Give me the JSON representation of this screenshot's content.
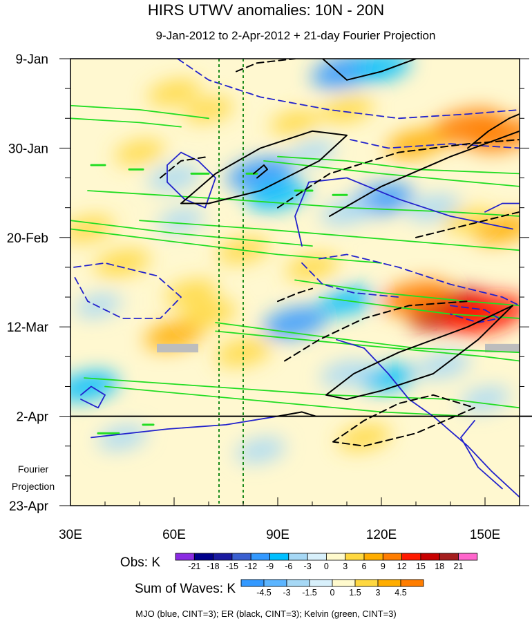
{
  "chart_data": {
    "type": "heatmap",
    "title": "HIRS UTWV anomalies: 10N - 20N",
    "subtitle": "9-Jan-2012 to 2-Apr-2012 + 21-day Fourier Projection",
    "x_axis": {
      "range": [
        30,
        160
      ],
      "ticks": [
        30,
        60,
        90,
        120,
        150
      ],
      "tick_labels": [
        "30E",
        "60E",
        "90E",
        "120E",
        "150E"
      ]
    },
    "y_axis": {
      "range_days": [
        0,
        105
      ],
      "ticks_days": [
        0,
        21,
        42,
        63,
        84,
        105
      ],
      "tick_labels": [
        "9-Jan",
        "30-Jan",
        "20-Feb",
        "12-Mar",
        "2-Apr",
        "23-Apr"
      ],
      "obs_end_day": 84
    },
    "fourier_label": [
      "Fourier",
      "Projection"
    ],
    "reference_longitudes": [
      73,
      80
    ],
    "obs_colorbar": {
      "label": "Obs: K",
      "levels": [
        "-21",
        "-18",
        "-15",
        "-12",
        "-9",
        "-6",
        "-3",
        "0",
        "3",
        "6",
        "9",
        "12",
        "15",
        "18",
        "21"
      ],
      "colors": [
        "#8a2be2",
        "#00008b",
        "#1a1aa0",
        "#3a5fd0",
        "#3399ff",
        "#00bfff",
        "#a6d8f5",
        "#d8f0fb",
        "#fffacd",
        "#ffd840",
        "#ffad00",
        "#ff7d00",
        "#ff1a00",
        "#c80000",
        "#a51e1e",
        "#ff66cc"
      ]
    },
    "waves_colorbar": {
      "label": "Sum of Waves: K",
      "levels": [
        "-4.5",
        "-3",
        "-1.5",
        "0",
        "1.5",
        "3",
        "4.5"
      ],
      "colors": [
        "#3399ff",
        "#5cb5ff",
        "#a6d8f5",
        "#d8f0fb",
        "#fffacd",
        "#ffd840",
        "#ffad00",
        "#ff7d00"
      ]
    },
    "legend_text": "MJO (blue, CINT=3); ER (black, CINT=3); Kelvin (green, CINT=3)",
    "wave_colors": {
      "mjo": "#2222cc",
      "er": "#000000",
      "kelvin": "#22dd22"
    },
    "anomaly_patches": [
      {
        "lon": 140,
        "day": 59,
        "value": 16
      },
      {
        "lon": 150,
        "day": 60,
        "value": 15
      },
      {
        "lon": 130,
        "day": 56,
        "value": 11
      },
      {
        "lon": 145,
        "day": 16,
        "value": 12
      },
      {
        "lon": 155,
        "day": 18,
        "value": 10
      },
      {
        "lon": 130,
        "day": 20,
        "value": 7
      },
      {
        "lon": 155,
        "day": 40,
        "value": 7
      },
      {
        "lon": 110,
        "day": 3,
        "value": -11
      },
      {
        "lon": 120,
        "day": 2,
        "value": -7
      },
      {
        "lon": 85,
        "day": 27,
        "value": -10
      },
      {
        "lon": 90,
        "day": 32,
        "value": -8
      },
      {
        "lon": 60,
        "day": 28,
        "value": -5
      },
      {
        "lon": 120,
        "day": 33,
        "value": -9
      },
      {
        "lon": 110,
        "day": 36,
        "value": -5
      },
      {
        "lon": 135,
        "day": 35,
        "value": -5
      },
      {
        "lon": 95,
        "day": 62,
        "value": -9
      },
      {
        "lon": 110,
        "day": 57,
        "value": -6
      },
      {
        "lon": 122,
        "day": 75,
        "value": -6
      },
      {
        "lon": 110,
        "day": 74,
        "value": -5
      },
      {
        "lon": 138,
        "day": 72,
        "value": -5
      },
      {
        "lon": 35,
        "day": 77,
        "value": -8
      },
      {
        "lon": 45,
        "day": 89,
        "value": -4
      },
      {
        "lon": 85,
        "day": 92,
        "value": -4
      },
      {
        "lon": 35,
        "day": 40,
        "value": 5
      },
      {
        "lon": 45,
        "day": 48,
        "value": 6
      },
      {
        "lon": 65,
        "day": 55,
        "value": 5
      },
      {
        "lon": 60,
        "day": 65,
        "value": 7
      },
      {
        "lon": 80,
        "day": 69,
        "value": 6
      },
      {
        "lon": 70,
        "day": 60,
        "value": 6
      },
      {
        "lon": 80,
        "day": 45,
        "value": 5
      },
      {
        "lon": 60,
        "day": 8,
        "value": 5
      },
      {
        "lon": 70,
        "day": 12,
        "value": 4
      },
      {
        "lon": 50,
        "day": 22,
        "value": 4
      },
      {
        "lon": 100,
        "day": 49,
        "value": 5
      },
      {
        "lon": 115,
        "day": 89,
        "value": 5
      },
      {
        "lon": 110,
        "day": 12,
        "value": 5
      },
      {
        "lon": 95,
        "day": 15,
        "value": 4
      },
      {
        "lon": 100,
        "day": 22,
        "value": -3
      },
      {
        "lon": 62,
        "day": 38,
        "value": -3
      },
      {
        "lon": 38,
        "day": 58,
        "value": -3
      },
      {
        "lon": 150,
        "day": 80,
        "value": -4
      },
      {
        "lon": 145,
        "day": 38,
        "value": 4
      }
    ],
    "missing_patches": [
      {
        "lon0": 55,
        "lon1": 67,
        "day0": 67,
        "day1": 69
      },
      {
        "lon0": 150,
        "lon1": 160,
        "day0": 67,
        "day1": 69
      }
    ],
    "contours": {
      "mjo_solid": [
        [
          [
            33,
            79
          ],
          [
            36,
            77
          ],
          [
            40,
            79
          ],
          [
            38,
            82
          ],
          [
            33,
            80
          ]
        ],
        [
          [
            36,
            89
          ],
          [
            58,
            87
          ],
          [
            75,
            86
          ],
          [
            90,
            84
          ]
        ],
        [
          [
            97,
            44
          ],
          [
            95,
            37
          ],
          [
            99,
            29
          ],
          [
            110,
            28
          ],
          [
            125,
            33
          ],
          [
            140,
            37
          ],
          [
            158,
            40
          ]
        ],
        [
          [
            107,
            66
          ],
          [
            115,
            68
          ],
          [
            122,
            74
          ],
          [
            128,
            80
          ],
          [
            135,
            84
          ],
          [
            145,
            91
          ],
          [
            152,
            97
          ],
          [
            160,
            103
          ]
        ],
        [
          [
            150,
            36
          ],
          [
            155,
            34
          ],
          [
            160,
            34
          ]
        ],
        [
          [
            58,
            25
          ],
          [
            62,
            22
          ],
          [
            67,
            24
          ],
          [
            72,
            28
          ],
          [
            69,
            35
          ],
          [
            63,
            33
          ],
          [
            58,
            29
          ],
          [
            58,
            25
          ]
        ],
        [
          [
            147,
            85
          ],
          [
            143,
            89
          ],
          [
            148,
            96
          ],
          [
            155,
            101
          ]
        ]
      ],
      "mjo_dashed": [
        [
          [
            61,
            0
          ],
          [
            70,
            5
          ],
          [
            85,
            9
          ],
          [
            105,
            12
          ],
          [
            125,
            14
          ],
          [
            145,
            13
          ],
          [
            160,
            12
          ]
        ],
        [
          [
            31,
            49
          ],
          [
            40,
            48
          ],
          [
            55,
            51
          ],
          [
            62,
            56
          ],
          [
            56,
            61
          ],
          [
            45,
            61
          ],
          [
            35,
            57
          ],
          [
            31,
            51
          ]
        ],
        [
          [
            102,
            47
          ],
          [
            110,
            46
          ],
          [
            125,
            49
          ],
          [
            140,
            53
          ],
          [
            155,
            56
          ],
          [
            160,
            58
          ]
        ],
        [
          [
            97,
            48
          ],
          [
            103,
            53
          ],
          [
            112,
            55
          ],
          [
            125,
            56
          ]
        ],
        [
          [
            111,
            19
          ],
          [
            122,
            21
          ],
          [
            140,
            20
          ],
          [
            160,
            21
          ]
        ],
        [
          [
            140,
            58
          ],
          [
            150,
            59
          ],
          [
            154,
            61
          ],
          [
            148,
            62
          ],
          [
            140,
            60
          ]
        ]
      ],
      "er_solid": [
        [
          [
            62,
            34
          ],
          [
            72,
            27
          ],
          [
            85,
            21
          ],
          [
            100,
            17
          ],
          [
            110,
            18
          ],
          [
            102,
            24
          ],
          [
            85,
            31
          ],
          [
            70,
            34
          ],
          [
            62,
            34
          ]
        ],
        [
          [
            103,
            0
          ],
          [
            110,
            5
          ],
          [
            120,
            3
          ],
          [
            130,
            0
          ]
        ],
        [
          [
            105,
            37
          ],
          [
            120,
            30
          ],
          [
            140,
            23
          ],
          [
            160,
            17
          ]
        ],
        [
          [
            145,
            21
          ],
          [
            151,
            17
          ],
          [
            157,
            14
          ],
          [
            160,
            13
          ]
        ],
        [
          [
            104,
            79
          ],
          [
            112,
            74
          ],
          [
            125,
            69
          ],
          [
            145,
            63
          ],
          [
            158,
            58
          ],
          [
            148,
            66
          ],
          [
            135,
            74
          ],
          [
            120,
            78
          ],
          [
            110,
            80
          ],
          [
            104,
            79
          ]
        ],
        [
          [
            90,
            84
          ],
          [
            97,
            83
          ],
          [
            101,
            84
          ]
        ],
        [
          [
            83,
            27
          ],
          [
            86,
            25
          ],
          [
            87,
            26
          ],
          [
            84,
            28
          ]
        ]
      ],
      "er_dashed": [
        [
          [
            78,
            3
          ],
          [
            84,
            1
          ],
          [
            95,
            0
          ]
        ],
        [
          [
            90,
            35
          ],
          [
            105,
            27
          ],
          [
            125,
            22
          ],
          [
            145,
            20
          ],
          [
            160,
            19
          ]
        ],
        [
          [
            92,
            71
          ],
          [
            102,
            66
          ],
          [
            115,
            61
          ],
          [
            128,
            58
          ],
          [
            145,
            57
          ]
        ],
        [
          [
            106,
            90
          ],
          [
            115,
            85
          ],
          [
            125,
            81
          ],
          [
            135,
            79
          ],
          [
            147,
            82
          ],
          [
            130,
            88
          ],
          [
            115,
            91
          ],
          [
            106,
            90
          ]
        ],
        [
          [
            56,
            28
          ],
          [
            62,
            24
          ],
          [
            70,
            23
          ]
        ],
        [
          [
            90,
            57
          ],
          [
            96,
            55
          ],
          [
            100,
            54
          ]
        ],
        [
          [
            130,
            42
          ],
          [
            150,
            38
          ],
          [
            160,
            36
          ]
        ]
      ],
      "kelvin": [
        [
          [
            30,
            11
          ],
          [
            50,
            12
          ],
          [
            70,
            14
          ]
        ],
        [
          [
            30,
            14
          ],
          [
            50,
            15
          ],
          [
            62,
            16
          ]
        ],
        [
          [
            90,
            23
          ],
          [
            110,
            24
          ],
          [
            130,
            26
          ],
          [
            160,
            27
          ]
        ],
        [
          [
            86,
            24
          ],
          [
            120,
            27
          ],
          [
            160,
            30
          ]
        ],
        [
          [
            30,
            40
          ],
          [
            60,
            43
          ],
          [
            90,
            46
          ],
          [
            120,
            48
          ]
        ],
        [
          [
            30,
            38
          ],
          [
            60,
            41
          ],
          [
            100,
            44
          ]
        ],
        [
          [
            50,
            38
          ],
          [
            85,
            40
          ],
          [
            115,
            42
          ],
          [
            145,
            44
          ],
          [
            160,
            45
          ]
        ],
        [
          [
            95,
            52
          ],
          [
            120,
            55
          ],
          [
            145,
            57
          ],
          [
            160,
            58
          ]
        ],
        [
          [
            102,
            56
          ],
          [
            140,
            60
          ],
          [
            160,
            61
          ]
        ],
        [
          [
            72,
            62
          ],
          [
            100,
            65
          ],
          [
            130,
            68
          ],
          [
            160,
            69
          ]
        ],
        [
          [
            72,
            64
          ],
          [
            110,
            67
          ],
          [
            150,
            70
          ],
          [
            160,
            71
          ]
        ],
        [
          [
            34,
            75
          ],
          [
            70,
            77
          ],
          [
            105,
            79
          ],
          [
            140,
            80
          ],
          [
            160,
            82
          ]
        ],
        [
          [
            40,
            77
          ],
          [
            80,
            80
          ],
          [
            120,
            83
          ],
          [
            145,
            84
          ]
        ],
        [
          [
            35,
            31
          ],
          [
            75,
            33
          ],
          [
            110,
            35
          ],
          [
            140,
            36
          ],
          [
            160,
            37
          ]
        ]
      ],
      "kelvin_dashed": [
        [
          [
            36,
            25
          ],
          [
            40,
            25
          ]
        ],
        [
          [
            47,
            26
          ],
          [
            51,
            26
          ]
        ],
        [
          [
            65,
            27
          ],
          [
            70,
            27
          ]
        ],
        [
          [
            81,
            27
          ],
          [
            84,
            27
          ]
        ],
        [
          [
            95,
            31
          ],
          [
            100,
            31
          ]
        ],
        [
          [
            106,
            32
          ],
          [
            110,
            32
          ]
        ],
        [
          [
            38,
            88
          ],
          [
            44,
            88
          ]
        ],
        [
          [
            51,
            86
          ],
          [
            54,
            86
          ]
        ]
      ]
    }
  }
}
